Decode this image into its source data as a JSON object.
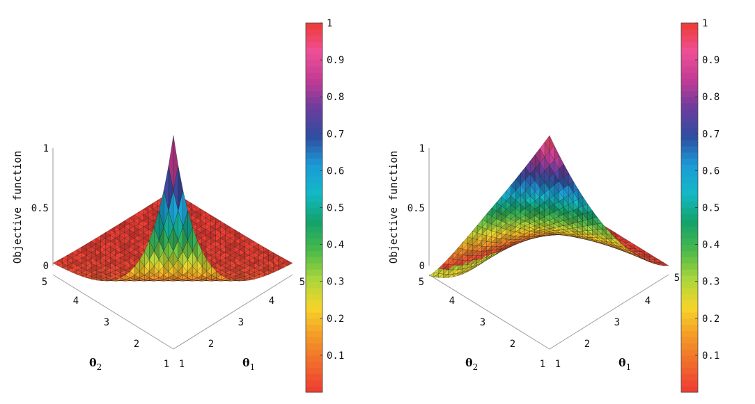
{
  "chart_data": [
    {
      "type": "surface",
      "panel": "left",
      "zlabel": "Objective function",
      "x_axis": {
        "label": "θ",
        "subscript": "1",
        "ticks": [
          "1",
          "2",
          "3",
          "4",
          "5"
        ],
        "range": [
          1,
          5
        ]
      },
      "y_axis": {
        "label": "θ",
        "subscript": "2",
        "ticks": [
          "1",
          "2",
          "3",
          "4",
          "5"
        ],
        "range": [
          1,
          5
        ]
      },
      "z_axis": {
        "ticks": [
          "0",
          "0.5",
          "1"
        ],
        "range": [
          0,
          1
        ]
      },
      "surface": {
        "grid": 25,
        "z_at_corners": {
          "t1_1_t2_1": 1.0,
          "t1_5_t2_1": 0.0,
          "t1_1_t2_5": 0.0,
          "t1_5_t2_5": 0.0
        },
        "shape": "peak at theta1=1, theta2=1, decaying to 0 elsewhere"
      },
      "colorbar": {
        "ticks": [
          "0.1",
          "0.2",
          "0.3",
          "0.4",
          "0.5",
          "0.6",
          "0.7",
          "0.8",
          "0.9",
          "1"
        ],
        "range": [
          0,
          1
        ],
        "colormap_stops": [
          "#ee3b33",
          "#f16a2c",
          "#f39b27",
          "#f5d52a",
          "#a9d63c",
          "#49b94a",
          "#13a26a",
          "#13b8c4",
          "#1c9ad8",
          "#2f4ea0",
          "#6a3d9e",
          "#c23b94",
          "#ee4f97",
          "#ee3b33"
        ]
      }
    },
    {
      "type": "surface",
      "panel": "right",
      "zlabel": "Objective function",
      "x_axis": {
        "label": "θ",
        "subscript": "1",
        "ticks": [
          "1",
          "2",
          "3",
          "4",
          "5"
        ],
        "range": [
          1,
          5
        ]
      },
      "y_axis": {
        "label": "θ",
        "subscript": "2",
        "ticks": [
          "1",
          "2",
          "3",
          "4",
          "5"
        ],
        "range": [
          1,
          5
        ]
      },
      "z_axis": {
        "ticks": [
          "0",
          "0.5",
          "1"
        ],
        "range": [
          0,
          1
        ]
      },
      "surface": {
        "grid": 25,
        "z_at_corners": {
          "t1_1_t2_1": 1.0,
          "t1_5_t2_1": 0.0,
          "t1_1_t2_5": 0.0,
          "t1_5_t2_5": 0.0
        },
        "shape": "peak at theta1=1, theta2=1, dipping to about -0.2 near theta1=1..2, theta2=5"
      },
      "colorbar": {
        "ticks": [
          "0.1",
          "0.2",
          "0.3",
          "0.4",
          "0.5",
          "0.6",
          "0.7",
          "0.8",
          "0.9",
          "1"
        ],
        "range": [
          0,
          1
        ],
        "colormap_stops": [
          "#ee3b33",
          "#f16a2c",
          "#f39b27",
          "#f5d52a",
          "#a9d63c",
          "#49b94a",
          "#13a26a",
          "#13b8c4",
          "#1c9ad8",
          "#2f4ea0",
          "#6a3d9e",
          "#c23b94",
          "#ee4f97",
          "#ee3b33"
        ]
      }
    }
  ]
}
